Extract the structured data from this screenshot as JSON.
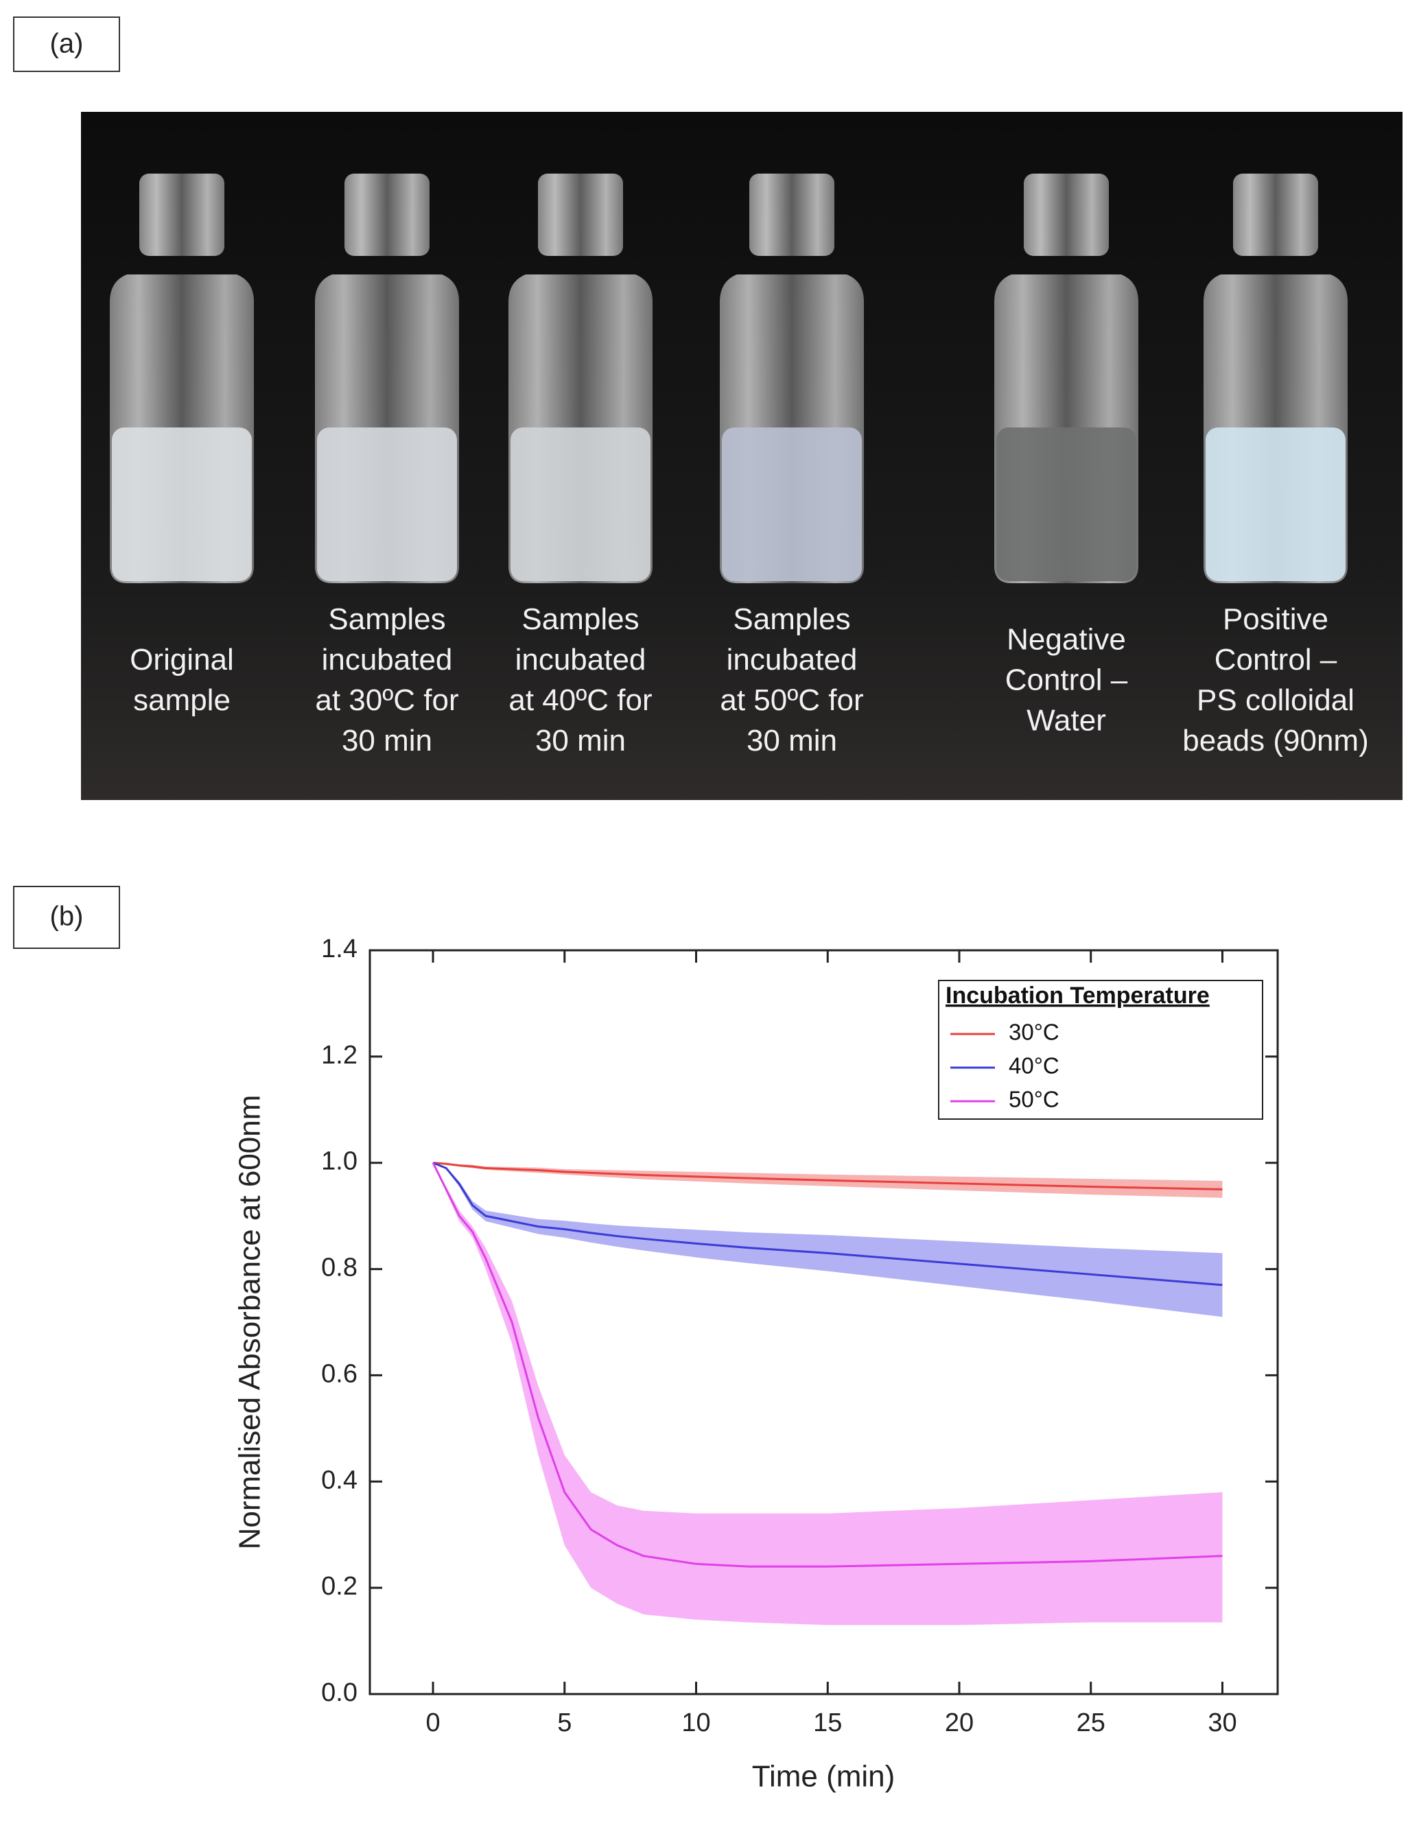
{
  "panel_a": {
    "label": "(a)",
    "captions": [
      [
        "Original",
        "sample"
      ],
      [
        "Samples",
        "incubated",
        "at 30ºC for",
        "30 min"
      ],
      [
        "Samples",
        "incubated",
        "at 40ºC for",
        "30 min"
      ],
      [
        "Samples",
        "incubated",
        "at 50ºC for",
        "30 min"
      ],
      [
        "Negative",
        "Control –",
        "Water"
      ],
      [
        "Positive",
        "Control –",
        "PS colloidal",
        "beads (90nm)"
      ]
    ]
  },
  "panel_b": {
    "label": "(b)"
  },
  "chart_data": {
    "type": "line",
    "xlabel": "Time (min)",
    "ylabel": "Normalised Absorbance at 600nm",
    "legend_title": "Incubation Temperature",
    "legend": "upper right",
    "xlim": [
      -2.4,
      32.1
    ],
    "ylim": [
      0,
      1.4
    ],
    "xticks": [
      0,
      5,
      10,
      15,
      20,
      25,
      30
    ],
    "yticks": [
      {
        "value": 0,
        "label": "0.0"
      },
      0.2,
      0.4,
      0.6,
      0.8,
      {
        "value": 1,
        "label": "1.0"
      },
      1.2,
      1.4
    ],
    "x": [
      0,
      0.5,
      1,
      1.5,
      2,
      3,
      4,
      5,
      6,
      7,
      8,
      10,
      12,
      15,
      20,
      25,
      30
    ],
    "series": [
      {
        "name": "30°C",
        "color": "#e8403c",
        "band_color": "#f4a6a4",
        "values": [
          1.0,
          0.998,
          0.995,
          0.993,
          0.99,
          0.988,
          0.986,
          0.983,
          0.981,
          0.979,
          0.977,
          0.974,
          0.971,
          0.967,
          0.961,
          0.955,
          0.95
        ],
        "lower": [
          1.0,
          0.997,
          0.993,
          0.99,
          0.987,
          0.984,
          0.981,
          0.978,
          0.975,
          0.972,
          0.969,
          0.965,
          0.961,
          0.956,
          0.948,
          0.94,
          0.934
        ],
        "upper": [
          1.0,
          0.999,
          0.997,
          0.996,
          0.993,
          0.992,
          0.991,
          0.988,
          0.987,
          0.986,
          0.985,
          0.983,
          0.981,
          0.978,
          0.974,
          0.97,
          0.966
        ]
      },
      {
        "name": "40°C",
        "color": "#3b3bd6",
        "band_color": "#a3a3f2",
        "values": [
          1.0,
          0.99,
          0.96,
          0.92,
          0.9,
          0.89,
          0.88,
          0.875,
          0.868,
          0.862,
          0.857,
          0.848,
          0.84,
          0.83,
          0.81,
          0.79,
          0.77
        ],
        "lower": [
          1.0,
          0.988,
          0.955,
          0.912,
          0.89,
          0.878,
          0.866,
          0.859,
          0.85,
          0.842,
          0.835,
          0.822,
          0.811,
          0.796,
          0.768,
          0.74,
          0.71
        ],
        "upper": [
          1.0,
          0.992,
          0.965,
          0.928,
          0.91,
          0.902,
          0.894,
          0.891,
          0.886,
          0.882,
          0.879,
          0.874,
          0.869,
          0.864,
          0.852,
          0.84,
          0.83
        ]
      },
      {
        "name": "50°C",
        "color": "#e040e8",
        "band_color": "#f7a4f7",
        "values": [
          1.0,
          0.95,
          0.9,
          0.87,
          0.82,
          0.7,
          0.52,
          0.38,
          0.31,
          0.28,
          0.26,
          0.245,
          0.24,
          0.24,
          0.245,
          0.25,
          0.26
        ],
        "lower": [
          1.0,
          0.945,
          0.89,
          0.86,
          0.8,
          0.66,
          0.45,
          0.28,
          0.2,
          0.17,
          0.15,
          0.14,
          0.135,
          0.13,
          0.13,
          0.135,
          0.135
        ],
        "upper": [
          1.0,
          0.955,
          0.91,
          0.88,
          0.84,
          0.74,
          0.58,
          0.45,
          0.38,
          0.355,
          0.345,
          0.34,
          0.34,
          0.34,
          0.35,
          0.365,
          0.38
        ]
      }
    ]
  }
}
